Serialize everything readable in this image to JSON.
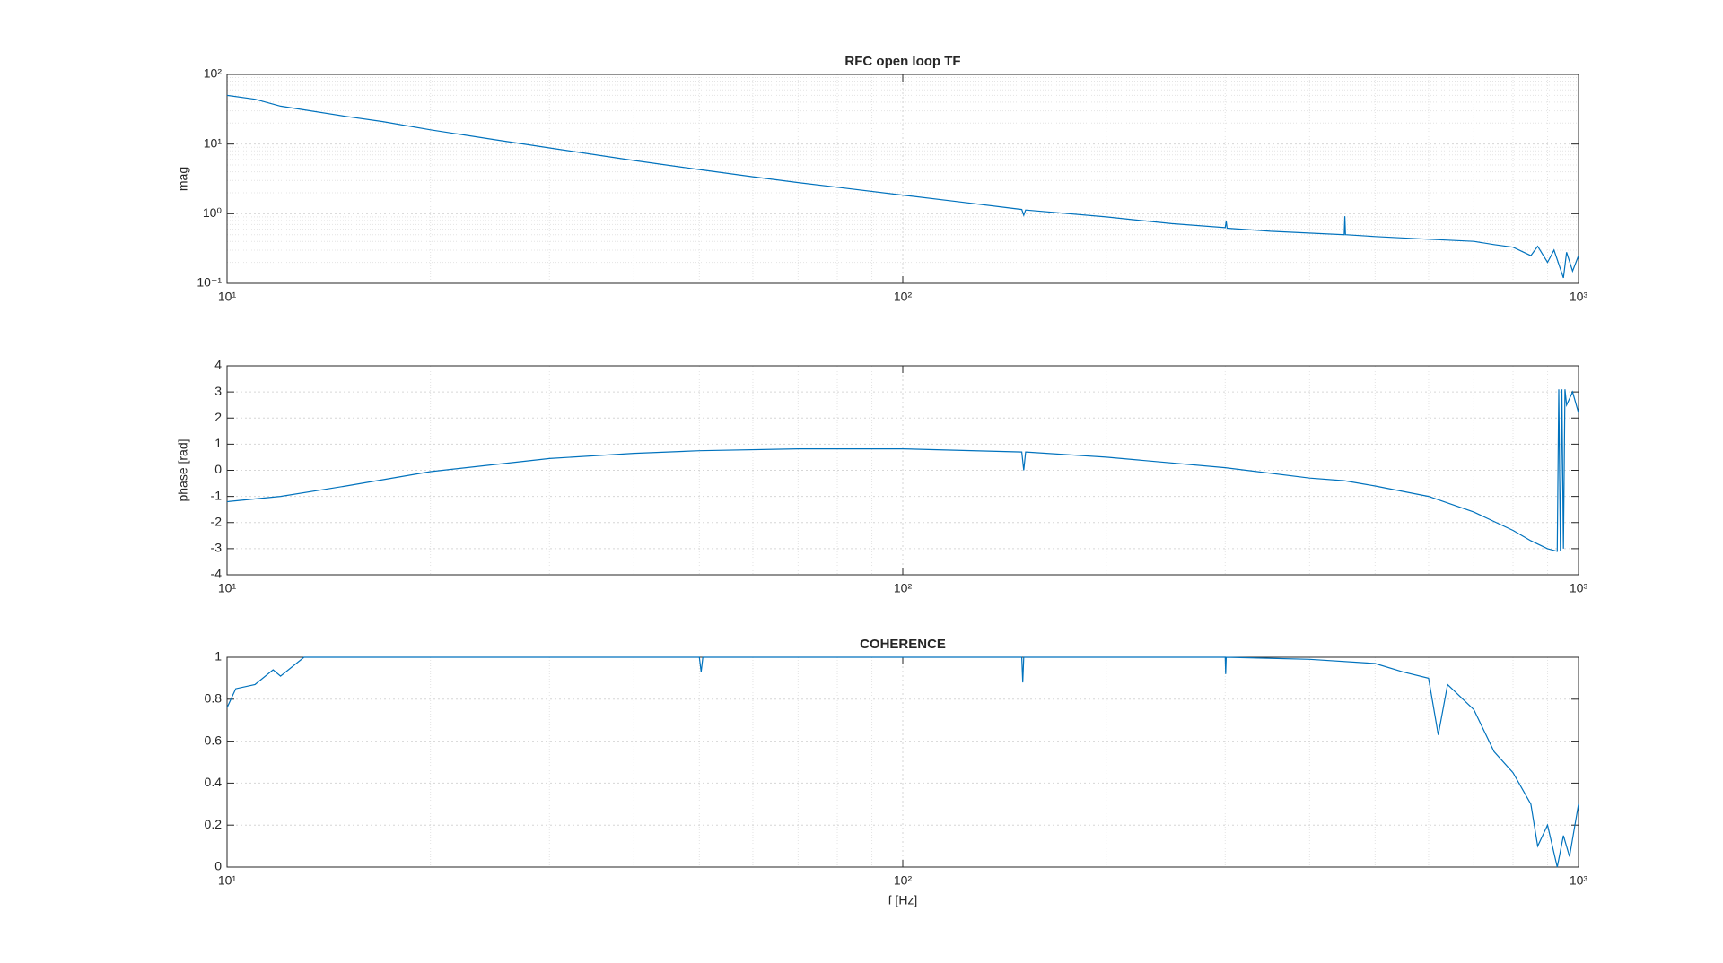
{
  "chart_data": [
    {
      "type": "line",
      "title": "RFC open loop TF",
      "ylabel": "mag",
      "xscale": "log",
      "yscale": "log",
      "grid": true,
      "minor_grid": true,
      "xlim": [
        10,
        1000
      ],
      "xticks": [
        {
          "value": 10,
          "label": "10¹"
        },
        {
          "value": 100,
          "label": "10²"
        },
        {
          "value": 1000,
          "label": "10³"
        }
      ],
      "ylim": [
        0.1,
        100
      ],
      "yticks": [
        {
          "value": 0.1,
          "label": "10⁻¹"
        },
        {
          "value": 1,
          "label": "10⁰"
        },
        {
          "value": 10,
          "label": "10¹"
        },
        {
          "value": 100,
          "label": "10²"
        }
      ],
      "color": "#0072bd",
      "x": [
        10,
        11,
        12,
        13,
        15,
        17,
        20,
        25,
        30,
        40,
        50,
        60,
        70,
        80,
        100,
        120,
        150,
        151,
        152,
        200,
        250,
        300,
        301,
        302,
        350,
        450,
        451,
        452,
        500,
        600,
        700,
        750,
        800,
        850,
        870,
        900,
        920,
        950,
        960,
        980,
        1000
      ],
      "values": [
        50,
        44,
        35,
        31,
        25,
        21,
        16,
        11.5,
        8.8,
        5.8,
        4.3,
        3.4,
        2.8,
        2.4,
        1.85,
        1.5,
        1.15,
        0.95,
        1.13,
        0.9,
        0.72,
        0.63,
        0.78,
        0.62,
        0.56,
        0.5,
        0.92,
        0.5,
        0.47,
        0.43,
        0.4,
        0.36,
        0.33,
        0.25,
        0.34,
        0.2,
        0.3,
        0.12,
        0.28,
        0.15,
        0.25
      ]
    },
    {
      "type": "line",
      "ylabel": "phase [rad]",
      "xscale": "log",
      "grid": true,
      "minor_grid": true,
      "xlim": [
        10,
        1000
      ],
      "xticks": [
        {
          "value": 10,
          "label": "10¹"
        },
        {
          "value": 100,
          "label": "10²"
        },
        {
          "value": 1000,
          "label": "10³"
        }
      ],
      "ylim": [
        -4,
        4
      ],
      "yticks": [
        -4,
        -3,
        -2,
        -1,
        0,
        1,
        2,
        3,
        4
      ],
      "color": "#0072bd",
      "x": [
        10,
        12,
        15,
        20,
        30,
        40,
        50,
        70,
        100,
        150,
        151,
        152,
        200,
        300,
        400,
        450,
        500,
        600,
        700,
        800,
        850,
        900,
        930,
        935,
        940,
        945,
        950,
        955,
        960,
        980,
        1000
      ],
      "values": [
        -1.2,
        -1.0,
        -0.6,
        -0.05,
        0.45,
        0.65,
        0.75,
        0.82,
        0.82,
        0.7,
        0.0,
        0.7,
        0.5,
        0.1,
        -0.3,
        -0.4,
        -0.6,
        -1.0,
        -1.6,
        -2.3,
        -2.7,
        -3.0,
        -3.1,
        3.1,
        -3.1,
        3.1,
        -3.0,
        3.1,
        2.5,
        3.0,
        2.2
      ]
    },
    {
      "type": "line",
      "title": "COHERENCE",
      "xlabel": "f [Hz]",
      "xscale": "log",
      "grid": true,
      "minor_grid": true,
      "xlim": [
        10,
        1000
      ],
      "xticks": [
        {
          "value": 10,
          "label": "10¹"
        },
        {
          "value": 100,
          "label": "10²"
        },
        {
          "value": 1000,
          "label": "10³"
        }
      ],
      "ylim": [
        0,
        1
      ],
      "yticks": [
        0,
        0.2,
        0.4,
        0.6,
        0.8,
        1
      ],
      "color": "#0072bd",
      "x": [
        10,
        10.3,
        11,
        11.7,
        12,
        13,
        50,
        50.3,
        50.6,
        150,
        150.5,
        151,
        300,
        300.5,
        301,
        400,
        500,
        550,
        600,
        620,
        640,
        700,
        750,
        800,
        850,
        870,
        900,
        930,
        950,
        970,
        1000
      ],
      "values": [
        0.76,
        0.85,
        0.87,
        0.94,
        0.91,
        1.0,
        1.0,
        0.93,
        1.0,
        1.0,
        0.88,
        1.0,
        1.0,
        0.92,
        1.0,
        0.99,
        0.97,
        0.93,
        0.9,
        0.63,
        0.87,
        0.75,
        0.55,
        0.45,
        0.3,
        0.1,
        0.2,
        0.0,
        0.15,
        0.05,
        0.3
      ]
    }
  ]
}
